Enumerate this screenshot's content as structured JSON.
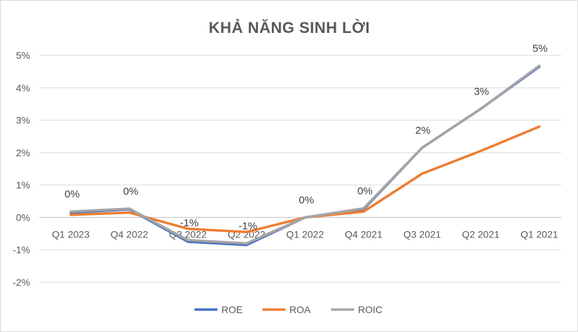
{
  "chart_data": {
    "type": "line",
    "title": "KHẢ NĂNG SINH LỜI",
    "categories": [
      "Q1 2023",
      "Q4 2022",
      "Q3 2022",
      "Q2 2022",
      "Q1 2022",
      "Q4 2021",
      "Q3 2021",
      "Q2 2021",
      "Q1 2021"
    ],
    "series": [
      {
        "name": "ROE",
        "color": "#4472C4",
        "values": [
          0.15,
          0.25,
          -0.75,
          -0.85,
          0.0,
          0.25,
          2.15,
          3.35,
          4.65
        ]
      },
      {
        "name": "ROA",
        "color": "#ED7D31",
        "values": [
          0.08,
          0.15,
          -0.35,
          -0.45,
          0.0,
          0.18,
          1.35,
          2.05,
          2.8
        ]
      },
      {
        "name": "ROIC",
        "color": "#A5A5A5",
        "values": [
          0.18,
          0.27,
          -0.7,
          -0.8,
          0.0,
          0.28,
          2.15,
          3.35,
          4.68
        ]
      }
    ],
    "data_labels": [
      "0%",
      "0%",
      "-1%",
      "-1%",
      "0%",
      "0%",
      "2%",
      "3%",
      "5%"
    ],
    "y_ticks": [
      "-2%",
      "-1%",
      "0%",
      "1%",
      "2%",
      "3%",
      "4%",
      "5%"
    ],
    "ylim": [
      -2,
      5
    ],
    "xlabel": "",
    "ylabel": "",
    "grid": true,
    "legend_position": "bottom"
  }
}
